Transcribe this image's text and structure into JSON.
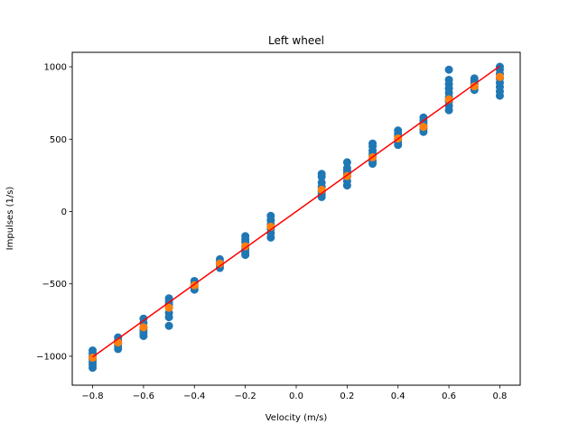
{
  "chart_data": {
    "type": "scatter",
    "title": "Left wheel",
    "xlabel": "Velocity (m/s)",
    "ylabel": "Impulses (1/s)",
    "xlim": [
      -0.88,
      0.88
    ],
    "ylim": [
      -1200,
      1100
    ],
    "xticks": [
      -0.8,
      -0.6,
      -0.4,
      -0.2,
      0.0,
      0.2,
      0.4,
      0.6,
      0.8
    ],
    "xtick_labels": [
      "−0.8",
      "−0.6",
      "−0.4",
      "−0.2",
      "0.0",
      "0.2",
      "0.4",
      "0.6",
      "0.8"
    ],
    "yticks": [
      -1000,
      -500,
      0,
      500,
      1000
    ],
    "ytick_labels": [
      "−1000",
      "−500",
      "0",
      "500",
      "1000"
    ],
    "grid": false,
    "series": [
      {
        "kind": "scatter",
        "color": "#1f77b4",
        "points": [
          [
            -0.8,
            -960
          ],
          [
            -0.8,
            -980
          ],
          [
            -0.8,
            -1000
          ],
          [
            -0.8,
            -1020
          ],
          [
            -0.8,
            -1040
          ],
          [
            -0.8,
            -1060
          ],
          [
            -0.8,
            -1080
          ],
          [
            -0.7,
            -870
          ],
          [
            -0.7,
            -890
          ],
          [
            -0.7,
            -910
          ],
          [
            -0.7,
            -930
          ],
          [
            -0.7,
            -950
          ],
          [
            -0.6,
            -740
          ],
          [
            -0.6,
            -770
          ],
          [
            -0.6,
            -800
          ],
          [
            -0.6,
            -820
          ],
          [
            -0.6,
            -840
          ],
          [
            -0.6,
            -860
          ],
          [
            -0.5,
            -600
          ],
          [
            -0.5,
            -620
          ],
          [
            -0.5,
            -640
          ],
          [
            -0.5,
            -660
          ],
          [
            -0.5,
            -700
          ],
          [
            -0.5,
            -730
          ],
          [
            -0.5,
            -790
          ],
          [
            -0.4,
            -480
          ],
          [
            -0.4,
            -500
          ],
          [
            -0.4,
            -520
          ],
          [
            -0.4,
            -540
          ],
          [
            -0.3,
            -330
          ],
          [
            -0.3,
            -350
          ],
          [
            -0.3,
            -370
          ],
          [
            -0.3,
            -390
          ],
          [
            -0.2,
            -170
          ],
          [
            -0.2,
            -190
          ],
          [
            -0.2,
            -210
          ],
          [
            -0.2,
            -240
          ],
          [
            -0.2,
            -260
          ],
          [
            -0.2,
            -280
          ],
          [
            -0.2,
            -300
          ],
          [
            -0.1,
            -30
          ],
          [
            -0.1,
            -60
          ],
          [
            -0.1,
            -90
          ],
          [
            -0.1,
            -120
          ],
          [
            -0.1,
            -150
          ],
          [
            -0.1,
            -180
          ],
          [
            0.1,
            260
          ],
          [
            0.1,
            240
          ],
          [
            0.1,
            200
          ],
          [
            0.1,
            170
          ],
          [
            0.1,
            140
          ],
          [
            0.1,
            120
          ],
          [
            0.1,
            100
          ],
          [
            0.2,
            340
          ],
          [
            0.2,
            300
          ],
          [
            0.2,
            280
          ],
          [
            0.2,
            260
          ],
          [
            0.2,
            240
          ],
          [
            0.2,
            210
          ],
          [
            0.2,
            180
          ],
          [
            0.3,
            470
          ],
          [
            0.3,
            450
          ],
          [
            0.3,
            420
          ],
          [
            0.3,
            400
          ],
          [
            0.3,
            380
          ],
          [
            0.3,
            350
          ],
          [
            0.3,
            330
          ],
          [
            0.4,
            560
          ],
          [
            0.4,
            540
          ],
          [
            0.4,
            520
          ],
          [
            0.4,
            500
          ],
          [
            0.4,
            480
          ],
          [
            0.4,
            460
          ],
          [
            0.5,
            650
          ],
          [
            0.5,
            630
          ],
          [
            0.5,
            610
          ],
          [
            0.5,
            590
          ],
          [
            0.5,
            570
          ],
          [
            0.5,
            550
          ],
          [
            0.6,
            980
          ],
          [
            0.6,
            910
          ],
          [
            0.6,
            880
          ],
          [
            0.6,
            850
          ],
          [
            0.6,
            820
          ],
          [
            0.6,
            790
          ],
          [
            0.6,
            760
          ],
          [
            0.6,
            730
          ],
          [
            0.6,
            700
          ],
          [
            0.7,
            920
          ],
          [
            0.7,
            900
          ],
          [
            0.7,
            880
          ],
          [
            0.7,
            860
          ],
          [
            0.7,
            840
          ],
          [
            0.8,
            1000
          ],
          [
            0.8,
            980
          ],
          [
            0.8,
            950
          ],
          [
            0.8,
            920
          ],
          [
            0.8,
            890
          ],
          [
            0.8,
            860
          ],
          [
            0.8,
            830
          ],
          [
            0.8,
            800
          ]
        ]
      },
      {
        "kind": "scatter",
        "color": "#ff7f0e",
        "points": [
          [
            -0.8,
            -1010
          ],
          [
            -0.7,
            -905
          ],
          [
            -0.6,
            -800
          ],
          [
            -0.5,
            -665
          ],
          [
            -0.4,
            -510
          ],
          [
            -0.3,
            -360
          ],
          [
            -0.2,
            -240
          ],
          [
            -0.1,
            -105
          ],
          [
            0.1,
            150
          ],
          [
            0.2,
            245
          ],
          [
            0.3,
            375
          ],
          [
            0.4,
            505
          ],
          [
            0.5,
            585
          ],
          [
            0.6,
            775
          ],
          [
            0.7,
            865
          ],
          [
            0.8,
            930
          ]
        ]
      },
      {
        "kind": "line",
        "color": "#ff0000",
        "points": [
          [
            -0.8,
            -1005
          ],
          [
            0.8,
            1005
          ]
        ]
      }
    ]
  }
}
